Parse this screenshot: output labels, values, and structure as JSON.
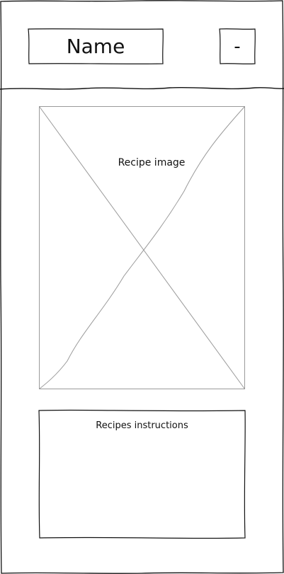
{
  "header": {
    "name_label": "Name",
    "minus_label": "-"
  },
  "main": {
    "image_placeholder_label": "Recipe image",
    "instructions_label": "Recipes instructions"
  },
  "colors": {
    "stroke": "#111111",
    "placeholder_stroke": "#9a9a9a",
    "background": "#ffffff"
  }
}
